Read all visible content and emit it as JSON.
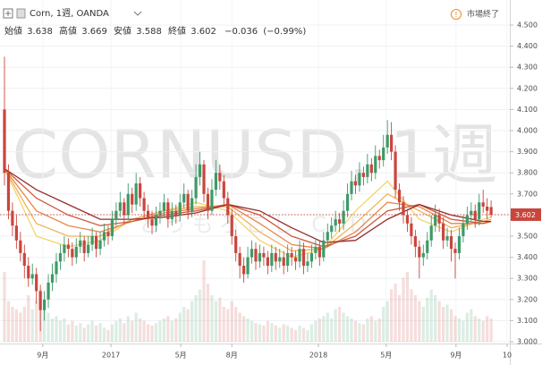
{
  "chart_data": {
    "type": "candlestick",
    "header": {
      "symbol": "Corn, 1週, OANDA",
      "open_label": "始値",
      "open": 3.638,
      "high_label": "高値",
      "high": 3.669,
      "low_label": "安値",
      "low": 3.588,
      "close_label": "終値",
      "close": 3.602,
      "change": {
        "value": -0.036,
        "label": "−0.036"
      },
      "change_pct": {
        "value": -0.99,
        "label": "(−0.99%)"
      },
      "status": "市場終了"
    },
    "watermark": "CORNUSD, 1週",
    "watermark_subtitle": "とうもろこし CFD",
    "up_color": "#3d9a68",
    "down_color": "#c9463d",
    "ylim": [
      3.0,
      4.5
    ],
    "yticks": [
      {
        "value": 4.5,
        "label": "4.500"
      },
      {
        "value": 4.4,
        "label": "4.400"
      },
      {
        "value": 4.3,
        "label": "4.300"
      },
      {
        "value": 4.2,
        "label": "4.200"
      },
      {
        "value": 4.1,
        "label": "4.100"
      },
      {
        "value": 4.0,
        "label": "4.000"
      },
      {
        "value": 3.9,
        "label": "3.900"
      },
      {
        "value": 3.8,
        "label": "3.800"
      },
      {
        "value": 3.7,
        "label": "3.700"
      },
      {
        "value": 3.6,
        "label": "3.600"
      },
      {
        "value": 3.5,
        "label": "3.500"
      },
      {
        "value": 3.4,
        "label": "3.400"
      },
      {
        "value": 3.3,
        "label": "3.300"
      },
      {
        "value": 3.2,
        "label": "3.200"
      },
      {
        "value": 3.1,
        "label": "3.100"
      },
      {
        "value": 3.0,
        "label": "3.000"
      }
    ],
    "grid": true,
    "xticks": [
      {
        "value": 9.6,
        "label": "9月"
      },
      {
        "value": 26.7,
        "label": "2017"
      },
      {
        "value": 44.2,
        "label": "5月"
      },
      {
        "value": 57,
        "label": "8月"
      },
      {
        "value": 78.7,
        "label": "2018"
      },
      {
        "value": 95.7,
        "label": "5月"
      },
      {
        "value": 113.2,
        "label": "9月"
      },
      {
        "value": 126,
        "label": "10"
      }
    ],
    "last_price": {
      "value": 3.602,
      "label": "3.602"
    },
    "candles": [
      [
        4.1,
        4.35,
        3.74,
        3.8
      ],
      [
        3.8,
        3.84,
        3.58,
        3.62
      ],
      [
        3.62,
        3.66,
        3.5,
        3.55
      ],
      [
        3.55,
        3.6,
        3.44,
        3.48
      ],
      [
        3.48,
        3.52,
        3.38,
        3.42
      ],
      [
        3.42,
        3.46,
        3.3,
        3.36
      ],
      [
        3.36,
        3.4,
        3.26,
        3.3
      ],
      [
        3.3,
        3.37,
        3.27,
        3.32
      ],
      [
        3.32,
        3.35,
        3.18,
        3.24
      ],
      [
        3.24,
        3.27,
        3.05,
        3.15
      ],
      [
        3.15,
        3.24,
        3.1,
        3.2
      ],
      [
        3.2,
        3.32,
        3.16,
        3.28
      ],
      [
        3.28,
        3.37,
        3.24,
        3.32
      ],
      [
        3.32,
        3.42,
        3.28,
        3.38
      ],
      [
        3.38,
        3.46,
        3.34,
        3.42
      ],
      [
        3.42,
        3.5,
        3.38,
        3.46
      ],
      [
        3.46,
        3.49,
        3.4,
        3.44
      ],
      [
        3.44,
        3.47,
        3.36,
        3.4
      ],
      [
        3.4,
        3.49,
        3.37,
        3.45
      ],
      [
        3.45,
        3.52,
        3.42,
        3.48
      ],
      [
        3.48,
        3.5,
        3.38,
        3.42
      ],
      [
        3.42,
        3.5,
        3.4,
        3.46
      ],
      [
        3.46,
        3.54,
        3.43,
        3.5
      ],
      [
        3.5,
        3.52,
        3.4,
        3.44
      ],
      [
        3.44,
        3.52,
        3.41,
        3.48
      ],
      [
        3.48,
        3.56,
        3.45,
        3.52
      ],
      [
        3.52,
        3.55,
        3.46,
        3.5
      ],
      [
        3.5,
        3.62,
        3.48,
        3.58
      ],
      [
        3.58,
        3.66,
        3.55,
        3.62
      ],
      [
        3.62,
        3.71,
        3.59,
        3.66
      ],
      [
        3.66,
        3.68,
        3.56,
        3.6
      ],
      [
        3.6,
        3.75,
        3.58,
        3.7
      ],
      [
        3.7,
        3.73,
        3.61,
        3.65
      ],
      [
        3.65,
        3.8,
        3.62,
        3.75
      ],
      [
        3.75,
        3.78,
        3.64,
        3.68
      ],
      [
        3.68,
        3.71,
        3.58,
        3.62
      ],
      [
        3.62,
        3.65,
        3.54,
        3.58
      ],
      [
        3.58,
        3.62,
        3.51,
        3.55
      ],
      [
        3.55,
        3.64,
        3.52,
        3.6
      ],
      [
        3.6,
        3.66,
        3.56,
        3.62
      ],
      [
        3.62,
        3.7,
        3.59,
        3.66
      ],
      [
        3.66,
        3.68,
        3.54,
        3.58
      ],
      [
        3.58,
        3.66,
        3.55,
        3.62
      ],
      [
        3.62,
        3.65,
        3.56,
        3.6
      ],
      [
        3.6,
        3.7,
        3.57,
        3.66
      ],
      [
        3.66,
        3.75,
        3.63,
        3.7
      ],
      [
        3.7,
        3.72,
        3.58,
        3.62
      ],
      [
        3.62,
        3.72,
        3.59,
        3.68
      ],
      [
        3.68,
        3.84,
        3.65,
        3.78
      ],
      [
        3.78,
        3.9,
        3.74,
        3.84
      ],
      [
        3.84,
        3.86,
        3.66,
        3.7
      ],
      [
        3.7,
        3.73,
        3.58,
        3.62
      ],
      [
        3.62,
        3.77,
        3.6,
        3.72
      ],
      [
        3.72,
        3.86,
        3.69,
        3.8
      ],
      [
        3.8,
        3.84,
        3.72,
        3.76
      ],
      [
        3.76,
        3.79,
        3.64,
        3.68
      ],
      [
        3.68,
        3.71,
        3.56,
        3.6
      ],
      [
        3.6,
        3.63,
        3.46,
        3.5
      ],
      [
        3.5,
        3.53,
        3.38,
        3.42
      ],
      [
        3.42,
        3.45,
        3.3,
        3.36
      ],
      [
        3.36,
        3.4,
        3.28,
        3.32
      ],
      [
        3.32,
        3.45,
        3.3,
        3.4
      ],
      [
        3.4,
        3.48,
        3.37,
        3.44
      ],
      [
        3.44,
        3.47,
        3.34,
        3.38
      ],
      [
        3.38,
        3.46,
        3.35,
        3.42
      ],
      [
        3.42,
        3.45,
        3.36,
        3.4
      ],
      [
        3.4,
        3.43,
        3.32,
        3.36
      ],
      [
        3.36,
        3.46,
        3.33,
        3.42
      ],
      [
        3.42,
        3.45,
        3.34,
        3.38
      ],
      [
        3.38,
        3.44,
        3.35,
        3.4
      ],
      [
        3.4,
        3.43,
        3.32,
        3.36
      ],
      [
        3.36,
        3.46,
        3.33,
        3.42
      ],
      [
        3.42,
        3.45,
        3.36,
        3.4
      ],
      [
        3.4,
        3.43,
        3.34,
        3.38
      ],
      [
        3.38,
        3.48,
        3.35,
        3.44
      ],
      [
        3.44,
        3.47,
        3.32,
        3.36
      ],
      [
        3.36,
        3.42,
        3.33,
        3.38
      ],
      [
        3.38,
        3.46,
        3.35,
        3.42
      ],
      [
        3.42,
        3.49,
        3.39,
        3.45
      ],
      [
        3.45,
        3.48,
        3.36,
        3.4
      ],
      [
        3.4,
        3.52,
        3.38,
        3.48
      ],
      [
        3.48,
        3.56,
        3.45,
        3.52
      ],
      [
        3.52,
        3.59,
        3.49,
        3.55
      ],
      [
        3.55,
        3.62,
        3.52,
        3.58
      ],
      [
        3.58,
        3.61,
        3.52,
        3.56
      ],
      [
        3.56,
        3.67,
        3.53,
        3.62
      ],
      [
        3.62,
        3.75,
        3.59,
        3.7
      ],
      [
        3.7,
        3.81,
        3.67,
        3.76
      ],
      [
        3.76,
        3.79,
        3.7,
        3.74
      ],
      [
        3.74,
        3.85,
        3.71,
        3.8
      ],
      [
        3.8,
        3.83,
        3.74,
        3.78
      ],
      [
        3.78,
        3.89,
        3.75,
        3.84
      ],
      [
        3.84,
        3.87,
        3.76,
        3.8
      ],
      [
        3.8,
        3.93,
        3.77,
        3.88
      ],
      [
        3.88,
        3.91,
        3.82,
        3.86
      ],
      [
        3.86,
        3.98,
        3.83,
        3.92
      ],
      [
        3.92,
        4.05,
        3.89,
        3.98
      ],
      [
        3.98,
        4.04,
        3.86,
        3.9
      ],
      [
        3.9,
        3.93,
        3.68,
        3.72
      ],
      [
        3.72,
        3.75,
        3.62,
        3.66
      ],
      [
        3.66,
        3.69,
        3.56,
        3.6
      ],
      [
        3.6,
        3.63,
        3.52,
        3.56
      ],
      [
        3.56,
        3.59,
        3.46,
        3.5
      ],
      [
        3.5,
        3.53,
        3.4,
        3.45
      ],
      [
        3.45,
        3.48,
        3.3,
        3.4
      ],
      [
        3.4,
        3.46,
        3.36,
        3.42
      ],
      [
        3.42,
        3.52,
        3.39,
        3.48
      ],
      [
        3.48,
        3.6,
        3.45,
        3.55
      ],
      [
        3.55,
        3.65,
        3.52,
        3.6
      ],
      [
        3.6,
        3.63,
        3.52,
        3.56
      ],
      [
        3.56,
        3.59,
        3.44,
        3.48
      ],
      [
        3.48,
        3.54,
        3.45,
        3.5
      ],
      [
        3.5,
        3.53,
        3.38,
        3.44
      ],
      [
        3.44,
        3.47,
        3.3,
        3.42
      ],
      [
        3.42,
        3.54,
        3.39,
        3.5
      ],
      [
        3.5,
        3.6,
        3.47,
        3.56
      ],
      [
        3.56,
        3.64,
        3.53,
        3.6
      ],
      [
        3.6,
        3.66,
        3.57,
        3.62
      ],
      [
        3.62,
        3.65,
        3.54,
        3.58
      ],
      [
        3.58,
        3.7,
        3.55,
        3.66
      ],
      [
        3.66,
        3.72,
        3.61,
        3.64
      ],
      [
        3.64,
        3.68,
        3.58,
        3.62
      ],
      [
        3.638,
        3.669,
        3.588,
        3.602
      ]
    ],
    "volume": [
      60,
      35,
      30,
      28,
      25,
      30,
      40,
      28,
      35,
      45,
      30,
      25,
      20,
      22,
      18,
      20,
      15,
      18,
      14,
      16,
      12,
      15,
      18,
      14,
      16,
      12,
      10,
      15,
      18,
      20,
      16,
      22,
      18,
      25,
      20,
      18,
      15,
      14,
      16,
      18,
      20,
      22,
      18,
      20,
      25,
      30,
      28,
      35,
      40,
      45,
      70,
      50,
      40,
      35,
      38,
      30,
      28,
      35,
      30,
      25,
      22,
      20,
      18,
      16,
      15,
      14,
      18,
      16,
      14,
      12,
      15,
      14,
      12,
      10,
      14,
      12,
      10,
      15,
      18,
      20,
      22,
      25,
      20,
      28,
      30,
      25,
      22,
      20,
      18,
      16,
      15,
      20,
      22,
      18,
      20,
      30,
      35,
      45,
      50,
      40,
      55,
      60,
      45,
      40,
      35,
      30,
      38,
      45,
      40,
      35,
      30,
      32,
      28,
      22,
      20,
      18,
      25,
      28,
      22,
      20,
      18,
      22,
      20
    ],
    "volume_lim": [
      0,
      100
    ],
    "ribbon_x": [
      0,
      8,
      16,
      24,
      32,
      40,
      48,
      56,
      64,
      72,
      80,
      88,
      96,
      104,
      112,
      120,
      122
    ],
    "ribbon": [
      {
        "color": "#f3d46a",
        "values": [
          3.82,
          3.5,
          3.45,
          3.48,
          3.58,
          3.62,
          3.66,
          3.62,
          3.48,
          3.4,
          3.44,
          3.62,
          3.76,
          3.58,
          3.52,
          3.58,
          3.59
        ]
      },
      {
        "color": "#f0b25a",
        "values": [
          3.82,
          3.56,
          3.5,
          3.5,
          3.58,
          3.62,
          3.64,
          3.64,
          3.52,
          3.43,
          3.44,
          3.56,
          3.7,
          3.62,
          3.54,
          3.57,
          3.58
        ]
      },
      {
        "color": "#e6884a",
        "values": [
          3.82,
          3.62,
          3.55,
          3.52,
          3.57,
          3.61,
          3.63,
          3.65,
          3.56,
          3.46,
          3.44,
          3.52,
          3.66,
          3.64,
          3.56,
          3.56,
          3.57
        ]
      },
      {
        "color": "#cf5a3e",
        "values": [
          3.82,
          3.68,
          3.6,
          3.55,
          3.57,
          3.6,
          3.62,
          3.65,
          3.6,
          3.5,
          3.45,
          3.5,
          3.62,
          3.65,
          3.58,
          3.56,
          3.57
        ]
      },
      {
        "color": "#962d2a",
        "values": [
          3.82,
          3.72,
          3.65,
          3.58,
          3.58,
          3.59,
          3.61,
          3.65,
          3.62,
          3.54,
          3.47,
          3.48,
          3.58,
          3.65,
          3.6,
          3.57,
          3.57
        ]
      }
    ]
  }
}
